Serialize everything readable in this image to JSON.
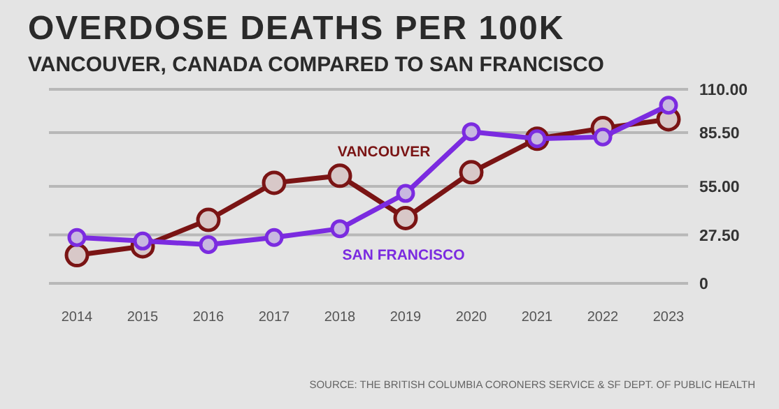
{
  "chart_data": {
    "type": "line",
    "title": "OVERDOSE DEATHS PER 100K",
    "subtitle": "VANCOUVER, CANADA COMPARED TO SAN FRANCISCO",
    "categories": [
      "2014",
      "2015",
      "2016",
      "2017",
      "2018",
      "2019",
      "2020",
      "2021",
      "2022",
      "2023"
    ],
    "series": [
      {
        "name": "VANCOUVER",
        "color": "#7a1414",
        "values": [
          16,
          21,
          36,
          57,
          61,
          37,
          63,
          82,
          88,
          93
        ]
      },
      {
        "name": "SAN FRANCISCO",
        "color": "#7b2be0",
        "values": [
          26,
          24,
          22,
          26,
          31,
          51,
          86,
          82,
          83,
          101
        ]
      }
    ],
    "ylim": [
      0,
      110
    ],
    "yticks": [
      {
        "value": 0,
        "label": "0"
      },
      {
        "value": 27.5,
        "label": "27.50"
      },
      {
        "value": 55,
        "label": "55.00"
      },
      {
        "value": 85.5,
        "label": "85.50"
      },
      {
        "value": 110,
        "label": "110.00"
      }
    ],
    "grid": "y",
    "marker": "circle",
    "legend": false,
    "annotations": [
      "SOURCE: THE BRITISH COLUMBIA CORONERS SERVICE & SF DEPT. OF PUBLIC HEALTH"
    ]
  }
}
